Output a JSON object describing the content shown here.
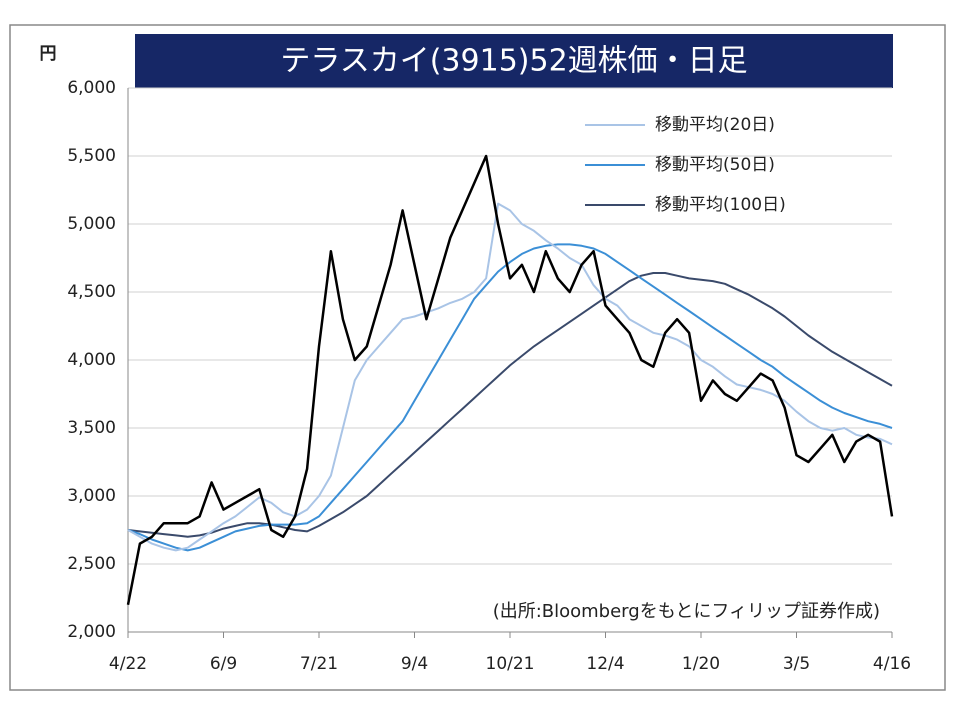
{
  "chart_data": {
    "type": "line",
    "title": "テラスカイ(3915)52週株価・日足",
    "y_label": "円",
    "annotation": "(出所:Bloombergをもとにフィリップ証券作成)",
    "categories": [
      "4/22",
      null,
      null,
      null,
      null,
      null,
      null,
      null,
      "6/9",
      null,
      null,
      null,
      null,
      null,
      null,
      null,
      "7/21",
      null,
      null,
      null,
      null,
      null,
      null,
      null,
      "9/4",
      null,
      null,
      null,
      null,
      null,
      null,
      null,
      "10/21",
      null,
      null,
      null,
      null,
      null,
      null,
      null,
      "12/4",
      null,
      null,
      null,
      null,
      null,
      null,
      null,
      "1/20",
      null,
      null,
      null,
      null,
      null,
      null,
      null,
      "3/5",
      null,
      null,
      null,
      null,
      null,
      null,
      null,
      "4/16"
    ],
    "series": [
      {
        "color": "#000000",
        "values": [
          2200,
          2650,
          2700,
          2800,
          2800,
          2800,
          2850,
          3100,
          2900,
          2950,
          3000,
          3050,
          2750,
          2700,
          2850,
          3200,
          4100,
          4800,
          4300,
          4000,
          4100,
          4400,
          4700,
          5100,
          4700,
          4300,
          4600,
          4900,
          5100,
          5300,
          5500,
          5000,
          4600,
          4700,
          4500,
          4800,
          4600,
          4500,
          4700,
          4800,
          4400,
          4300,
          4200,
          4000,
          3950,
          4200,
          4300,
          4200,
          3700,
          3850,
          3750,
          3700,
          3800,
          3900,
          3850,
          3650,
          3300,
          3250,
          3350,
          3450,
          3250,
          3400,
          3450,
          3400,
          2850
        ]
      },
      {
        "name": "移動平均(20日)",
        "color": "#a9c4e6",
        "values": [
          2750,
          2700,
          2650,
          2620,
          2600,
          2620,
          2680,
          2740,
          2800,
          2850,
          2920,
          2990,
          2950,
          2880,
          2850,
          2900,
          3000,
          3150,
          3500,
          3850,
          4000,
          4100,
          4200,
          4300,
          4320,
          4350,
          4380,
          4420,
          4450,
          4500,
          4600,
          5150,
          5100,
          5000,
          4950,
          4880,
          4820,
          4750,
          4700,
          4550,
          4450,
          4400,
          4300,
          4250,
          4200,
          4180,
          4150,
          4100,
          4000,
          3950,
          3880,
          3820,
          3800,
          3780,
          3750,
          3700,
          3620,
          3550,
          3500,
          3480,
          3500,
          3450,
          3430,
          3420,
          3380
        ]
      },
      {
        "name": "移動平均(50日)",
        "color": "#3b8fd6",
        "values": [
          2750,
          2720,
          2680,
          2650,
          2620,
          2600,
          2620,
          2660,
          2700,
          2740,
          2760,
          2780,
          2790,
          2790,
          2790,
          2800,
          2850,
          2950,
          3050,
          3150,
          3250,
          3350,
          3450,
          3550,
          3700,
          3850,
          4000,
          4150,
          4300,
          4450,
          4550,
          4650,
          4720,
          4780,
          4820,
          4840,
          4850,
          4850,
          4840,
          4820,
          4780,
          4720,
          4660,
          4600,
          4540,
          4480,
          4420,
          4360,
          4300,
          4240,
          4180,
          4120,
          4060,
          4000,
          3950,
          3880,
          3820,
          3760,
          3700,
          3650,
          3610,
          3580,
          3550,
          3530,
          3500
        ]
      },
      {
        "name": "移動平均(100日)",
        "color": "#3a4a6b",
        "values": [
          2750,
          2740,
          2730,
          2720,
          2710,
          2700,
          2710,
          2730,
          2760,
          2780,
          2800,
          2800,
          2790,
          2770,
          2750,
          2740,
          2780,
          2830,
          2880,
          2940,
          3000,
          3080,
          3160,
          3240,
          3320,
          3400,
          3480,
          3560,
          3640,
          3720,
          3800,
          3880,
          3960,
          4030,
          4100,
          4160,
          4220,
          4280,
          4340,
          4400,
          4460,
          4520,
          4580,
          4620,
          4640,
          4640,
          4620,
          4600,
          4590,
          4580,
          4560,
          4520,
          4480,
          4430,
          4380,
          4320,
          4250,
          4180,
          4120,
          4060,
          4010,
          3960,
          3910,
          3860,
          3810
        ]
      }
    ],
    "ylim": [
      2000,
      6000
    ],
    "yticks": [
      {
        "value": 2000,
        "label": "2,000"
      },
      {
        "value": 2500,
        "label": "2,500"
      },
      {
        "value": 3000,
        "label": "3,000"
      },
      {
        "value": 3500,
        "label": "3,500"
      },
      {
        "value": 4000,
        "label": "4,000"
      },
      {
        "value": 4500,
        "label": "4,500"
      },
      {
        "value": 5000,
        "label": "5,000"
      },
      {
        "value": 5500,
        "label": "5,500"
      },
      {
        "value": 6000,
        "label": "6,000"
      }
    ],
    "grid": true,
    "legend": "top-right"
  }
}
